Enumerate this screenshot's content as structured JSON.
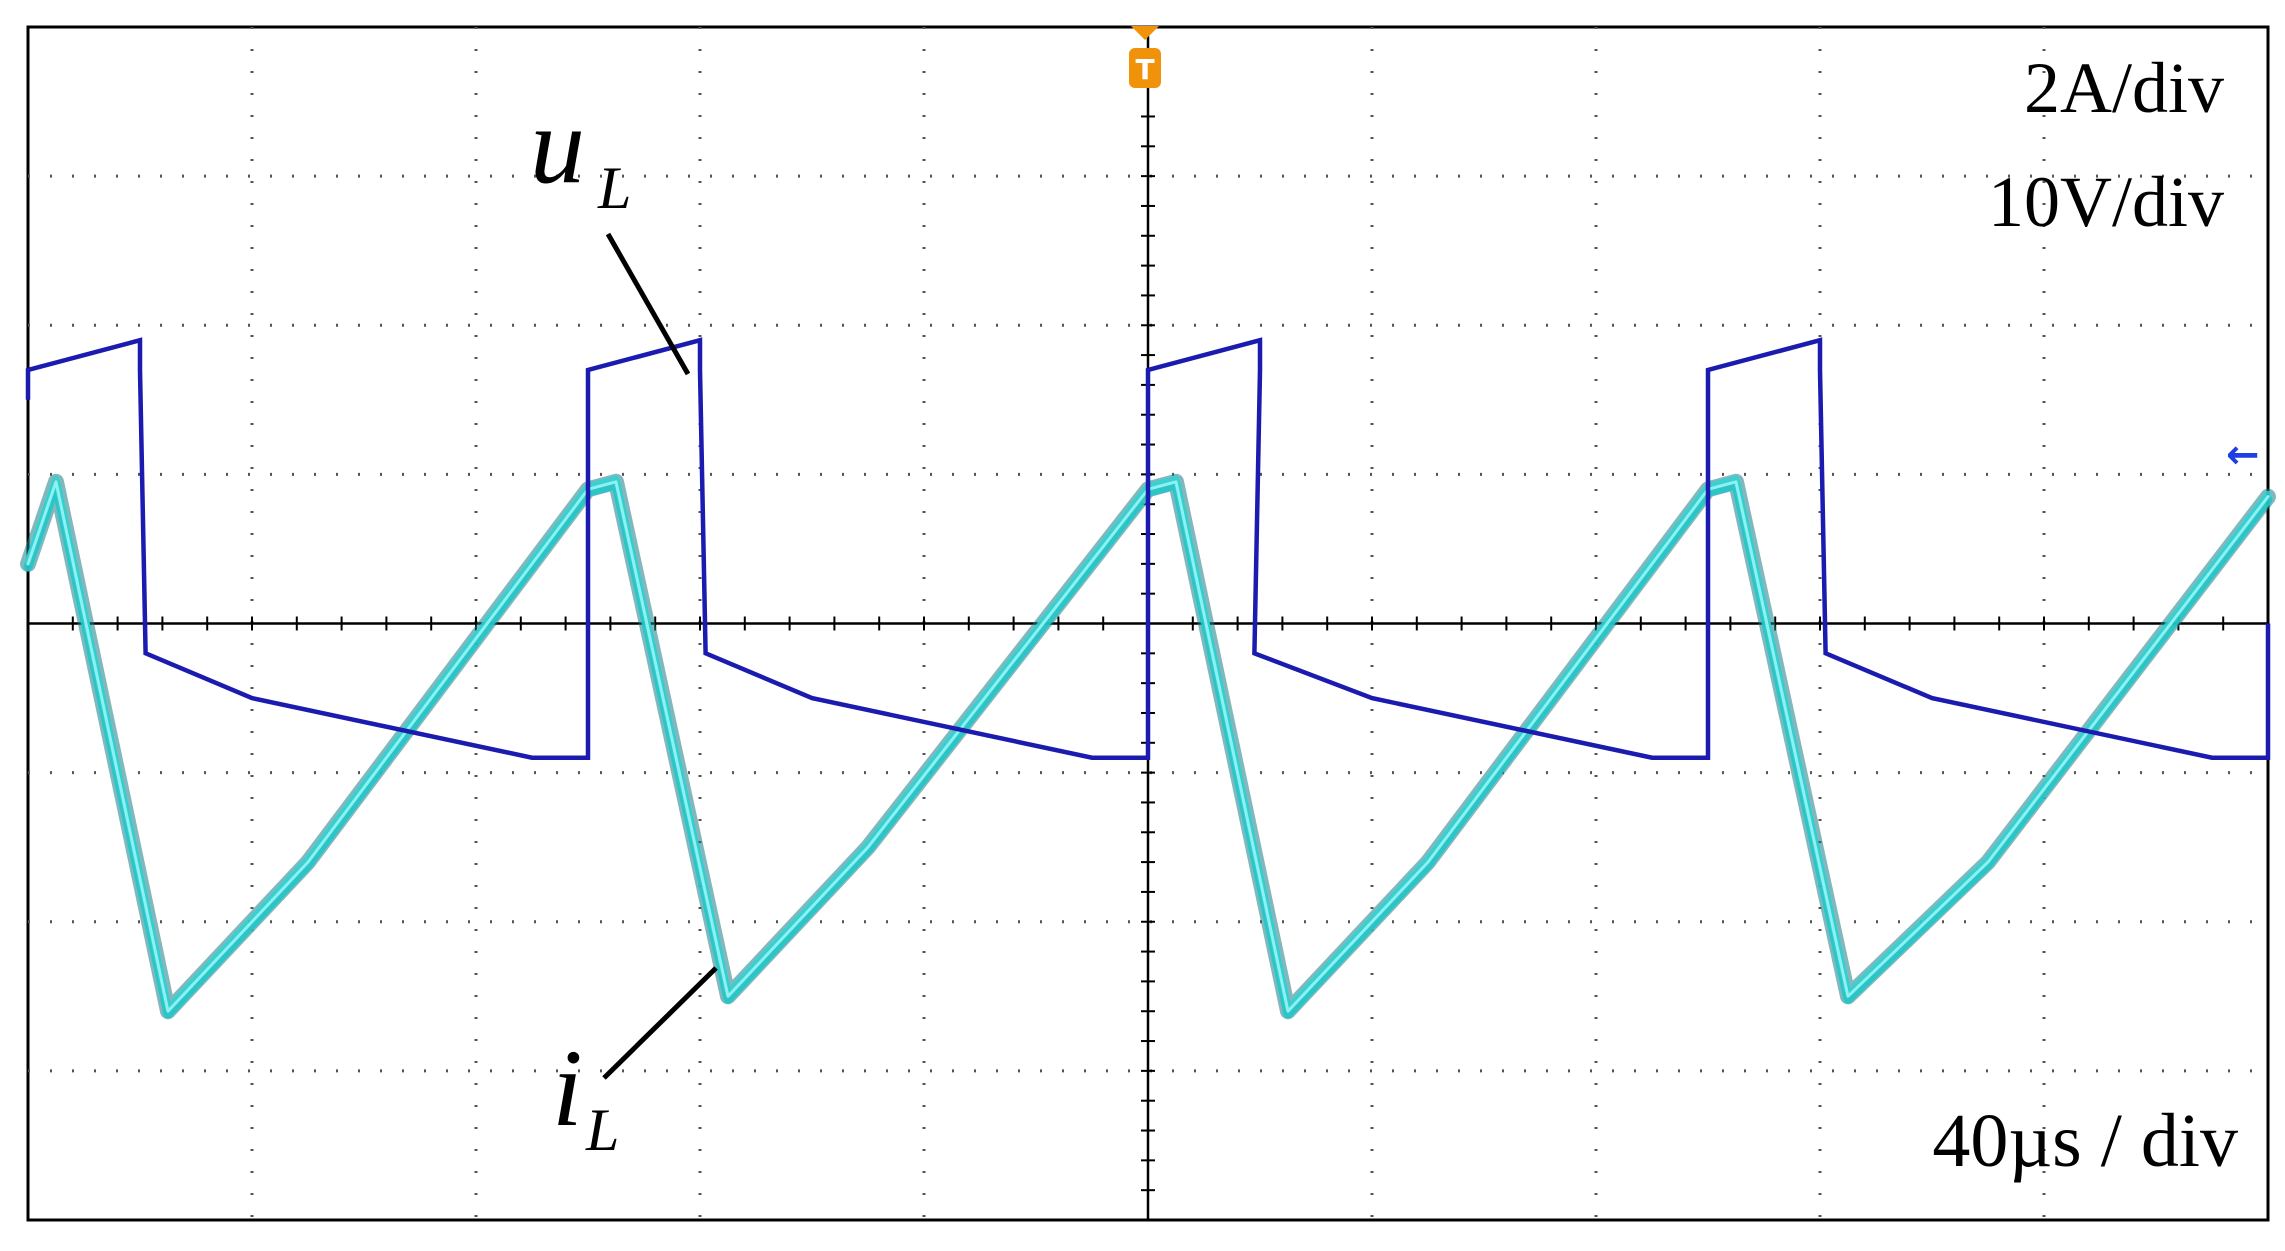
{
  "chart_data": {
    "type": "line",
    "title": "",
    "xlabel": "",
    "ylabel": "",
    "x_unit": "µs",
    "x_divisions": 10,
    "y_divisions": 8,
    "xlim": [
      -200,
      200
    ],
    "grid": true,
    "scales": {
      "current": "2A/div",
      "voltage": "10V/div",
      "time": "40µs / div"
    },
    "trigger": {
      "marker": "T",
      "x": 0,
      "color": "#f0920a"
    },
    "channel_reference_marker": {
      "symbol": "←",
      "color": "#1f3fe0"
    },
    "annotations": {
      "voltage_label": "u",
      "voltage_subscript": "L",
      "current_label": "i",
      "current_subscript": "L"
    },
    "series": [
      {
        "name": "uL",
        "unit": "V",
        "color": "#1b1bb0",
        "x": [
          -200,
          -200,
          -180,
          -180,
          -179,
          -160,
          -110,
          -100,
          -100,
          -80,
          -80,
          -79,
          -60,
          -10,
          0,
          0,
          20,
          20,
          19,
          40,
          90,
          100,
          100,
          120,
          120,
          121,
          140,
          190,
          200,
          200
        ],
        "y": [
          15,
          17,
          19,
          17,
          -2,
          -5,
          -9,
          -9,
          17,
          19,
          17,
          -2,
          -5,
          -9,
          -9,
          17,
          19,
          17,
          -2,
          -5,
          -9,
          -9,
          17,
          19,
          17,
          -2,
          -5,
          -9,
          -9,
          0
        ]
      },
      {
        "name": "iL",
        "unit": "A",
        "color": "#22c6c8",
        "x": [
          -200,
          -195,
          -175,
          -150,
          -100,
          -95,
          -75,
          -50,
          0,
          5,
          25,
          50,
          100,
          105,
          125,
          150,
          200
        ],
        "y": [
          0.8,
          1.9,
          -5.2,
          -3.2,
          1.8,
          1.9,
          -5.0,
          -3.0,
          1.8,
          1.9,
          -5.2,
          -3.2,
          1.8,
          1.9,
          -5.0,
          -3.2,
          1.7
        ]
      }
    ]
  }
}
